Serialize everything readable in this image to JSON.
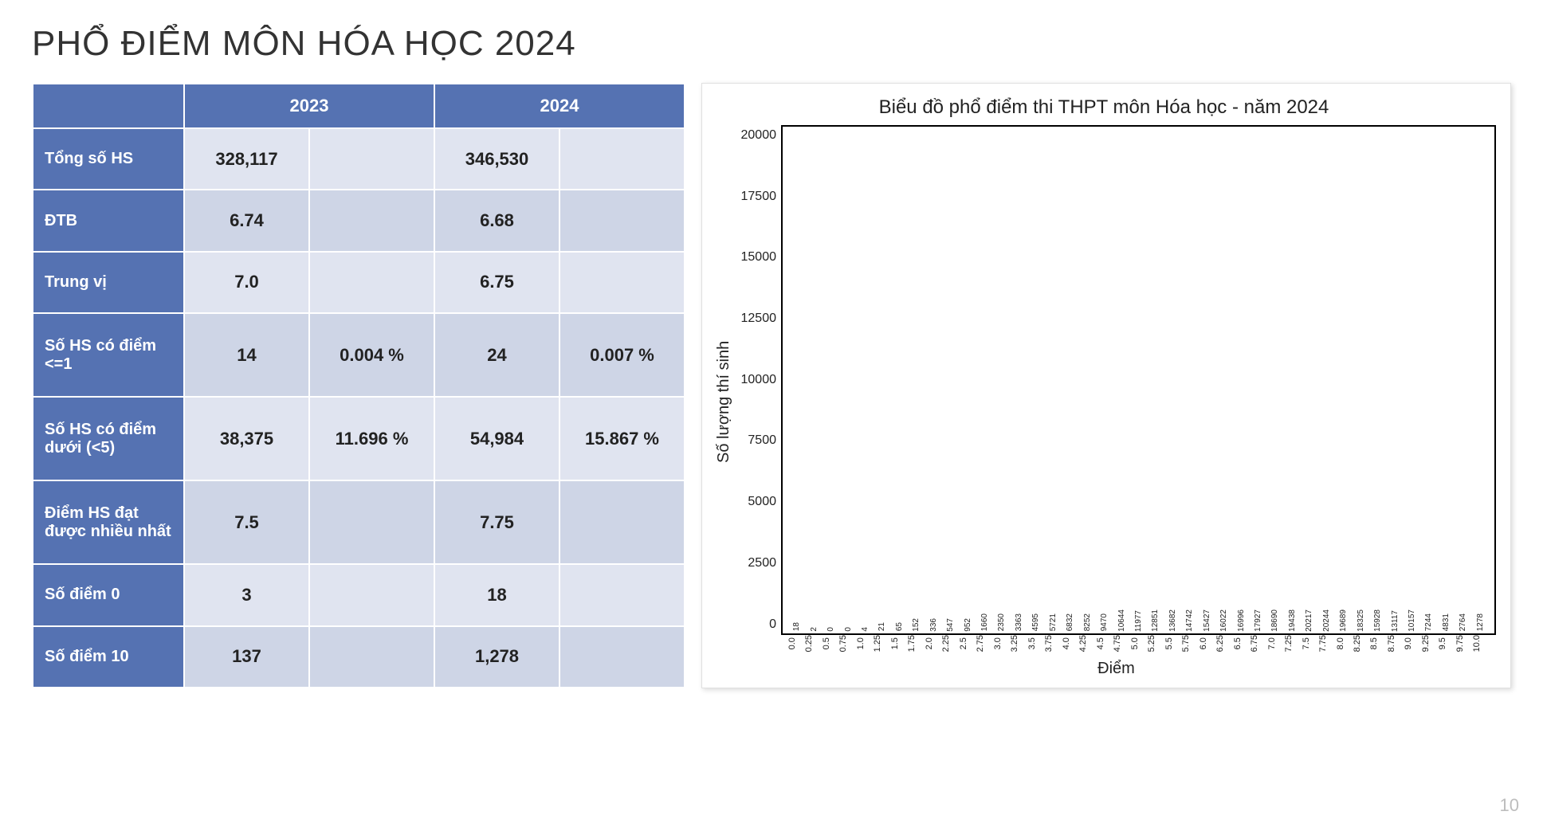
{
  "page": {
    "title": "PHỔ ĐIỂM MÔN HÓA HỌC 2024",
    "page_number": "10",
    "background": "#ffffff"
  },
  "table": {
    "header_bg": "#5572b2",
    "header_fg": "#ffffff",
    "cell_bg_odd": "#e0e4f0",
    "cell_bg_even": "#ced5e6",
    "highlight_color": "#c0392b",
    "columns": [
      "",
      "2023",
      "2024"
    ],
    "rows": [
      {
        "label": "Tổng số HS",
        "v2023a": "328,117",
        "v2023b": "",
        "v2024a": "346,530",
        "v2024b": ""
      },
      {
        "label": "ĐTB",
        "v2023a": "6.74",
        "v2023b": "",
        "v2024a": "6.68",
        "v2024b": "",
        "hl2024a": true
      },
      {
        "label": "Trung vị",
        "v2023a": "7.0",
        "v2023b": "",
        "v2024a": "6.75",
        "v2024b": ""
      },
      {
        "label": "Số HS có điểm <=1",
        "v2023a": "14",
        "v2023b": "0.004 %",
        "v2024a": "24",
        "v2024b": "0.007 %"
      },
      {
        "label": "Số HS có điểm dưới (<5)",
        "v2023a": "38,375",
        "v2023b": "11.696 %",
        "v2024a": "54,984",
        "v2024b": "15.867 %"
      },
      {
        "label": "Điểm HS đạt được nhiều nhất",
        "v2023a": "7.5",
        "v2023b": "",
        "v2024a": "7.75",
        "v2024b": ""
      },
      {
        "label": "Số điểm 0",
        "v2023a": "3",
        "v2023b": "",
        "v2024a": "18",
        "v2024b": ""
      },
      {
        "label": "Số điểm 10",
        "v2023a": "137",
        "v2023b": "",
        "v2024a": "1,278",
        "v2024b": "",
        "hl2024a": true
      }
    ]
  },
  "chart": {
    "type": "bar",
    "title": "Biểu đồ phổ điểm thi THPT môn Hóa học - năm 2024",
    "xlabel": "Điểm",
    "ylabel": "Số lượng thí sinh",
    "bar_color": "#3b6fa6",
    "border_color": "#000000",
    "title_fontsize": 24,
    "label_fontsize": 20,
    "tick_fontsize": 11,
    "value_fontsize": 10,
    "ylim": [
      0,
      21000
    ],
    "yticks": [
      0,
      2500,
      5000,
      7500,
      10000,
      12500,
      15000,
      17500,
      20000
    ],
    "categories": [
      "0.0",
      "0.25",
      "0.5",
      "0.75",
      "1.0",
      "1.25",
      "1.5",
      "1.75",
      "2.0",
      "2.25",
      "2.5",
      "2.75",
      "3.0",
      "3.25",
      "3.5",
      "3.75",
      "4.0",
      "4.25",
      "4.5",
      "4.75",
      "5.0",
      "5.25",
      "5.5",
      "5.75",
      "6.0",
      "6.25",
      "6.5",
      "6.75",
      "7.0",
      "7.25",
      "7.5",
      "7.75",
      "8.0",
      "8.25",
      "8.5",
      "8.75",
      "9.0",
      "9.25",
      "9.5",
      "9.75",
      "10.0"
    ],
    "values": [
      18,
      2,
      0,
      0,
      4,
      21,
      65,
      152,
      336,
      547,
      952,
      1660,
      2350,
      3363,
      4595,
      5721,
      6832,
      8252,
      9470,
      10644,
      11977,
      12851,
      13682,
      14742,
      15427,
      16022,
      16996,
      17927,
      18690,
      19438,
      20217,
      20244,
      19689,
      18325,
      15928,
      13117,
      10157,
      7244,
      4831,
      2764,
      1278
    ]
  }
}
